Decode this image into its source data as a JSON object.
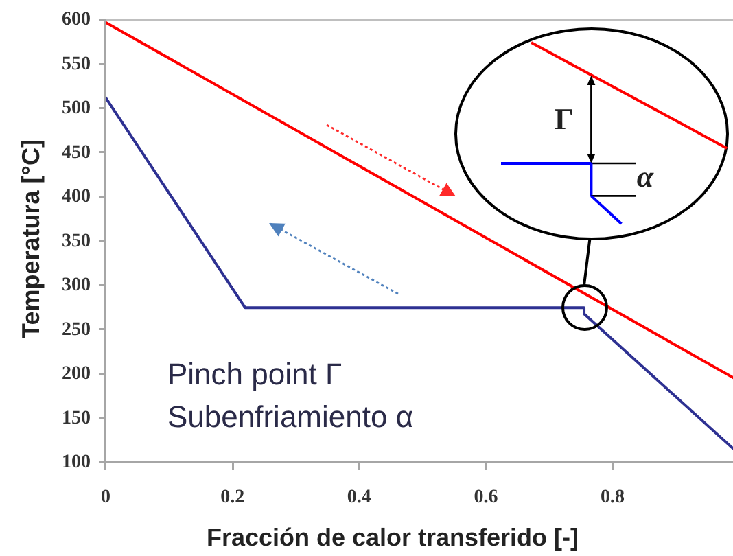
{
  "chart_data": {
    "type": "line",
    "xlabel": "Fracción de calor transferido [-]",
    "ylabel": "Temperatura [°C]",
    "series": [
      {
        "color": "#ff0000",
        "x": [
          0,
          0.99
        ],
        "values": [
          597,
          196
        ]
      },
      {
        "color": "#2e3192",
        "x": [
          0,
          0.22,
          0.755,
          0.755,
          0.99
        ],
        "values": [
          512,
          275,
          275,
          268,
          116
        ]
      }
    ],
    "xlim": [
      0,
      0.99
    ],
    "xticks": [
      0,
      0.2,
      0.4,
      0.6,
      0.8
    ],
    "ylim": [
      100,
      600
    ],
    "yticks": [
      100,
      150,
      200,
      250,
      300,
      350,
      400,
      450,
      500,
      550,
      600
    ],
    "grid": false,
    "legend": false,
    "marker": "none",
    "line_style": "solid",
    "annotations": [
      "Pinch point Γ",
      "Subenfriamiento α",
      "Γ",
      "α"
    ]
  }
}
